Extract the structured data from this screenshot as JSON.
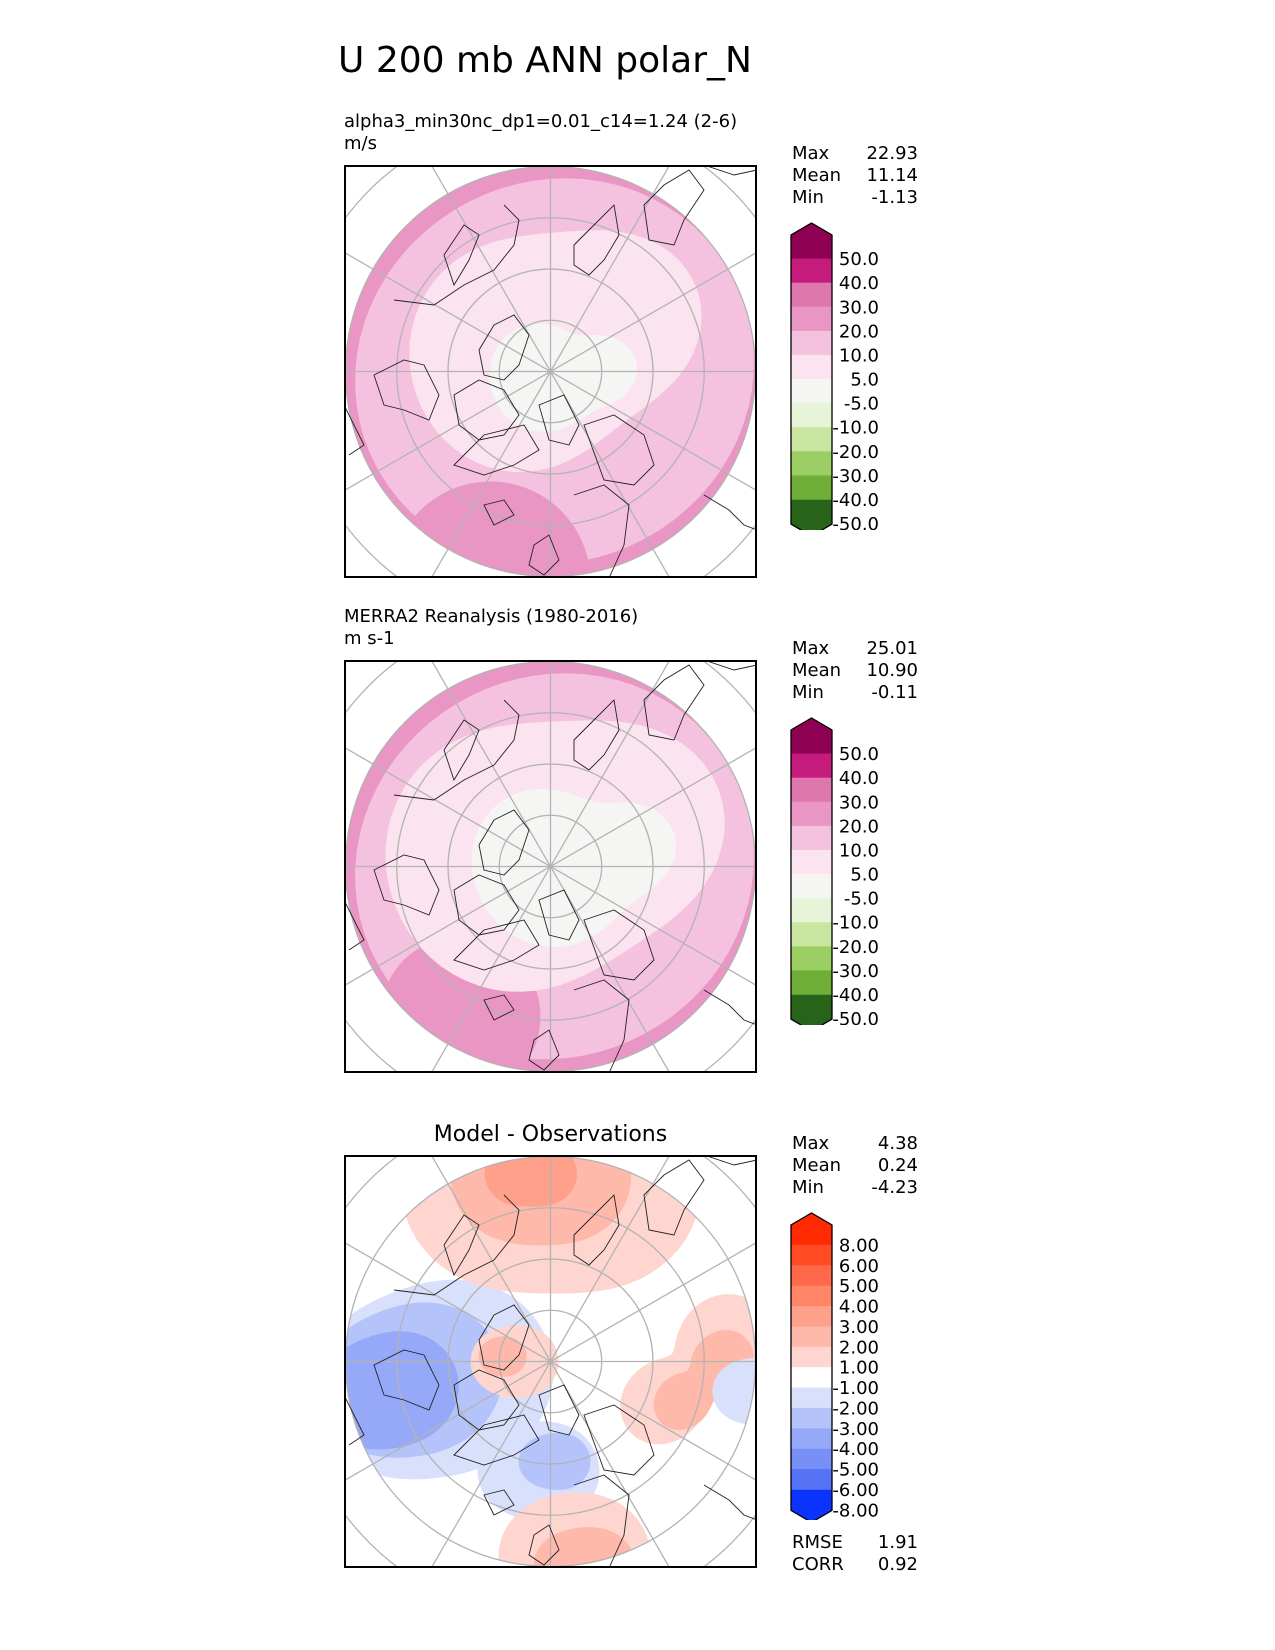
{
  "title": "U 200 mb ANN polar_N",
  "chart_data": [
    {
      "type": "heatmap",
      "projection": "polar_N",
      "title": "alpha3_min30nc_dp1=0.01_c14=1.24 (2-6)",
      "units": "m/s",
      "stats": [
        {
          "label": "Max",
          "value": "22.93"
        },
        {
          "label": "Mean",
          "value": "11.14"
        },
        {
          "label": "Min",
          "value": "-1.13"
        }
      ],
      "colorbar": {
        "labels": [
          "50.0",
          "40.0",
          "30.0",
          "20.0",
          "10.0",
          "5.0",
          "-5.0",
          "-10.0",
          "-20.0",
          "-30.0",
          "-40.0",
          "-50.0"
        ],
        "colors": [
          "#8e0152",
          "#c51b7d",
          "#de77ae",
          "#e996c4",
          "#f4c2de",
          "#fbe3ef",
          "#f5f5f3",
          "#e8f4d8",
          "#c8e6a0",
          "#9ccf63",
          "#6fae38",
          "#448a24",
          "#276419"
        ]
      },
      "field": {
        "pole_value_band": "-5.0 to 5.0",
        "outer_band": "20.0 to 30.0"
      }
    },
    {
      "type": "heatmap",
      "projection": "polar_N",
      "title": "MERRA2 Reanalysis (1980-2016)",
      "units": "m s-1",
      "stats": [
        {
          "label": "Max",
          "value": "25.01"
        },
        {
          "label": "Mean",
          "value": "10.90"
        },
        {
          "label": "Min",
          "value": "-0.11"
        }
      ],
      "colorbar": {
        "labels": [
          "50.0",
          "40.0",
          "30.0",
          "20.0",
          "10.0",
          "5.0",
          "-5.0",
          "-10.0",
          "-20.0",
          "-30.0",
          "-40.0",
          "-50.0"
        ],
        "colors": [
          "#8e0152",
          "#c51b7d",
          "#de77ae",
          "#e996c4",
          "#f4c2de",
          "#fbe3ef",
          "#f5f5f3",
          "#e8f4d8",
          "#c8e6a0",
          "#9ccf63",
          "#6fae38",
          "#448a24",
          "#276419"
        ]
      }
    },
    {
      "type": "heatmap",
      "projection": "polar_N",
      "title": "Model - Observations",
      "stats": [
        {
          "label": "Max",
          "value": "4.38"
        },
        {
          "label": "Mean",
          "value": "0.24"
        },
        {
          "label": "Min",
          "value": "-4.23"
        }
      ],
      "colorbar": {
        "labels": [
          "8.00",
          "6.00",
          "5.00",
          "4.00",
          "3.00",
          "2.00",
          "1.00",
          "-1.00",
          "-2.00",
          "-3.00",
          "-4.00",
          "-5.00",
          "-6.00",
          "-8.00"
        ],
        "colors": [
          "#ff2a00",
          "#ff4a24",
          "#ff6848",
          "#ff8566",
          "#fea08a",
          "#feb9aa",
          "#fed6cf",
          "#ffffff",
          "#d9e0fc",
          "#b5c3fb",
          "#96a9f8",
          "#7890f6",
          "#5673f5",
          "#3457f6",
          "#0a34fd"
        ]
      },
      "metrics": [
        {
          "label": "RMSE",
          "value": "1.91"
        },
        {
          "label": "CORR",
          "value": "0.92"
        }
      ]
    }
  ]
}
